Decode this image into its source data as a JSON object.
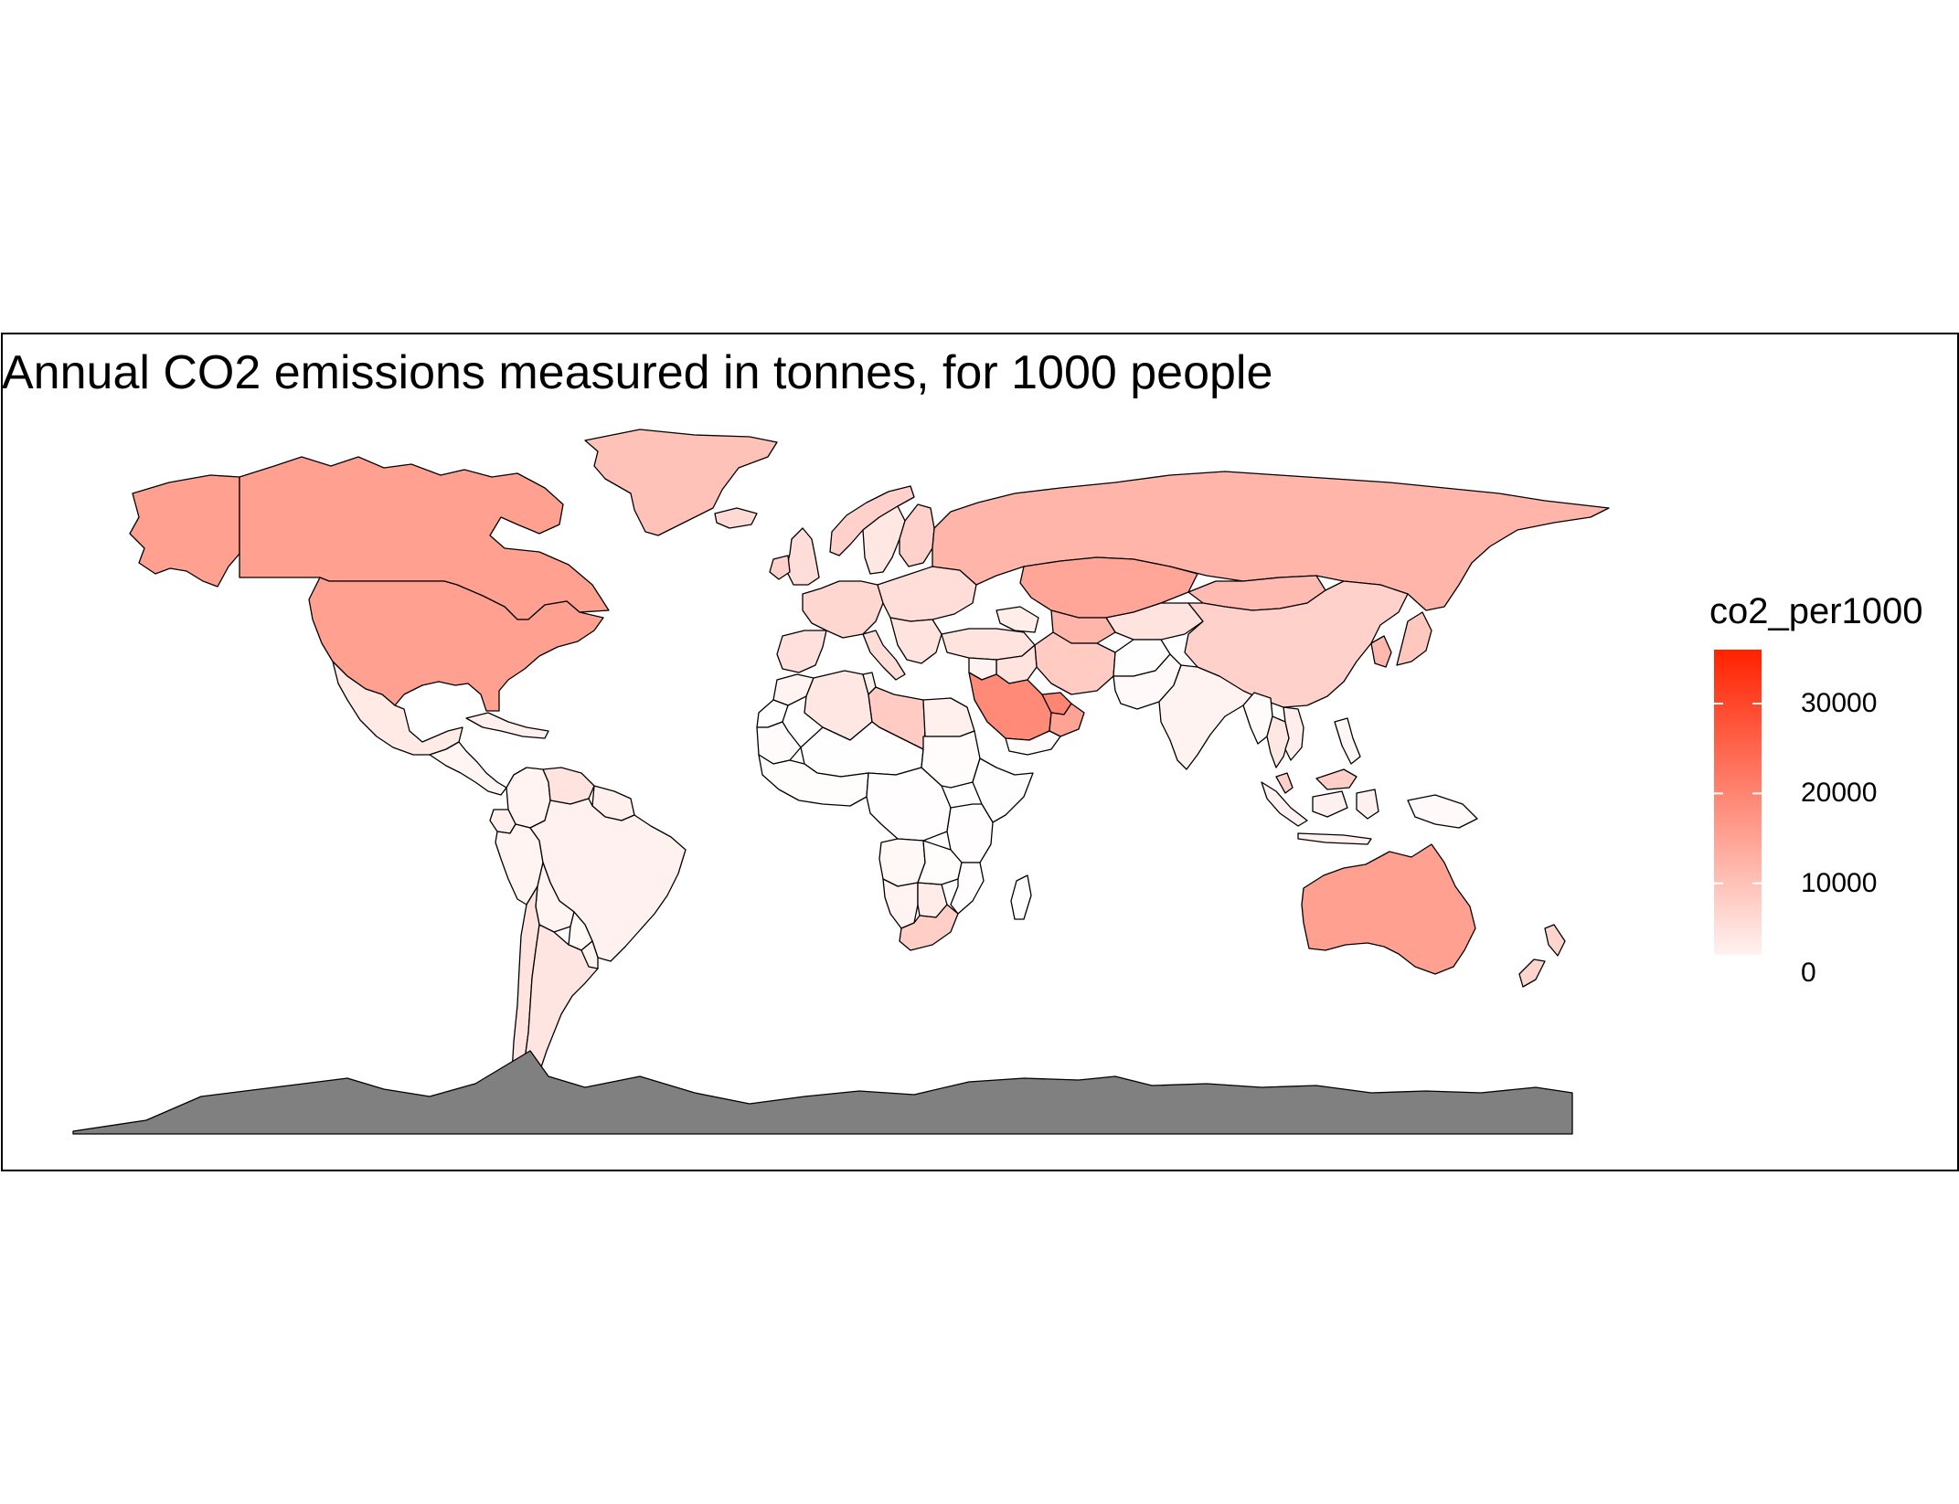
{
  "title": "Annual CO2 emissions measured in tonnes, for 1000 people",
  "chart_data": {
    "type": "choropleth",
    "title": "Annual CO2 emissions measured in tonnes, for 1000 people",
    "fill_variable": "co2_per1000",
    "no_data_color": "#808080",
    "color_scale": {
      "low": "#ffffff",
      "high": "#ff2200",
      "range": [
        0,
        36000
      ],
      "ticks": [
        0,
        10000,
        20000,
        30000
      ],
      "tick_labels": [
        "0",
        "10000",
        "20000",
        "30000"
      ]
    },
    "regions": [
      {
        "name": "Alaska",
        "value": 15500
      },
      {
        "name": "Canada",
        "value": 15500
      },
      {
        "name": "United States",
        "value": 15500
      },
      {
        "name": "Greenland",
        "value": 10000
      },
      {
        "name": "Mexico",
        "value": 3500
      },
      {
        "name": "Central America",
        "value": 1500
      },
      {
        "name": "Caribbean",
        "value": 2500
      },
      {
        "name": "Colombia",
        "value": 1800
      },
      {
        "name": "Venezuela",
        "value": 4500
      },
      {
        "name": "Guianas",
        "value": 2500
      },
      {
        "name": "Ecuador",
        "value": 2500
      },
      {
        "name": "Peru",
        "value": 1800
      },
      {
        "name": "Brazil",
        "value": 2200
      },
      {
        "name": "Bolivia",
        "value": 1800
      },
      {
        "name": "Paraguay",
        "value": 1000
      },
      {
        "name": "Chile",
        "value": 4500
      },
      {
        "name": "Argentina",
        "value": 4200
      },
      {
        "name": "Uruguay",
        "value": 2000
      },
      {
        "name": "Iceland",
        "value": 6000
      },
      {
        "name": "United Kingdom",
        "value": 5500
      },
      {
        "name": "Ireland",
        "value": 7500
      },
      {
        "name": "Norway",
        "value": 7500
      },
      {
        "name": "Sweden",
        "value": 3800
      },
      {
        "name": "Finland",
        "value": 7500
      },
      {
        "name": "Western Europe",
        "value": 6500
      },
      {
        "name": "Iberia",
        "value": 5000
      },
      {
        "name": "Italy",
        "value": 5500
      },
      {
        "name": "Eastern Europe",
        "value": 5500
      },
      {
        "name": "Balkans",
        "value": 4500
      },
      {
        "name": "Russia",
        "value": 12000
      },
      {
        "name": "Kazakhstan",
        "value": 14500
      },
      {
        "name": "Turkey",
        "value": 4500
      },
      {
        "name": "Caucasus",
        "value": 3000
      },
      {
        "name": "Central Asia",
        "value": 4500
      },
      {
        "name": "Turkmenistan",
        "value": 12000
      },
      {
        "name": "Iran",
        "value": 8500
      },
      {
        "name": "Iraq",
        "value": 4500
      },
      {
        "name": "Syria",
        "value": 2000
      },
      {
        "name": "Saudi Arabia",
        "value": 19000
      },
      {
        "name": "Gulf States",
        "value": 20000
      },
      {
        "name": "Oman",
        "value": 15000
      },
      {
        "name": "Yemen",
        "value": 600
      },
      {
        "name": "Afghanistan",
        "value": 200
      },
      {
        "name": "Pakistan",
        "value": 900
      },
      {
        "name": "India",
        "value": 1900
      },
      {
        "name": "Mongolia",
        "value": 11000
      },
      {
        "name": "China",
        "value": 7500
      },
      {
        "name": "Korea",
        "value": 11500
      },
      {
        "name": "Japan",
        "value": 9000
      },
      {
        "name": "Myanmar",
        "value": 600
      },
      {
        "name": "Thailand",
        "value": 3800
      },
      {
        "name": "Vietnam",
        "value": 2800
      },
      {
        "name": "Malaysia",
        "value": 8000
      },
      {
        "name": "Indonesia",
        "value": 2300
      },
      {
        "name": "Philippines",
        "value": 1300
      },
      {
        "name": "Papua New Guinea",
        "value": 800
      },
      {
        "name": "Australia",
        "value": 15500
      },
      {
        "name": "New Zealand",
        "value": 7000
      },
      {
        "name": "Morocco",
        "value": 1800
      },
      {
        "name": "Algeria",
        "value": 3800
      },
      {
        "name": "Tunisia",
        "value": 2500
      },
      {
        "name": "Libya",
        "value": 8500
      },
      {
        "name": "Egypt",
        "value": 2500
      },
      {
        "name": "Western Sahara",
        "value": 0
      },
      {
        "name": "Mauritania",
        "value": 600
      },
      {
        "name": "Sahel",
        "value": 200
      },
      {
        "name": "West Africa",
        "value": 400
      },
      {
        "name": "Central Africa",
        "value": 300
      },
      {
        "name": "Sudan",
        "value": 500
      },
      {
        "name": "Horn of Africa",
        "value": 200
      },
      {
        "name": "East Africa",
        "value": 300
      },
      {
        "name": "Angola",
        "value": 1200
      },
      {
        "name": "Namibia",
        "value": 1800
      },
      {
        "name": "Botswana",
        "value": 3200
      },
      {
        "name": "Zambia and Zimbabwe",
        "value": 400
      },
      {
        "name": "Mozambique",
        "value": 300
      },
      {
        "name": "South Africa",
        "value": 8000
      },
      {
        "name": "Madagascar",
        "value": 150
      },
      {
        "name": "Antarctica",
        "value": null
      }
    ]
  }
}
